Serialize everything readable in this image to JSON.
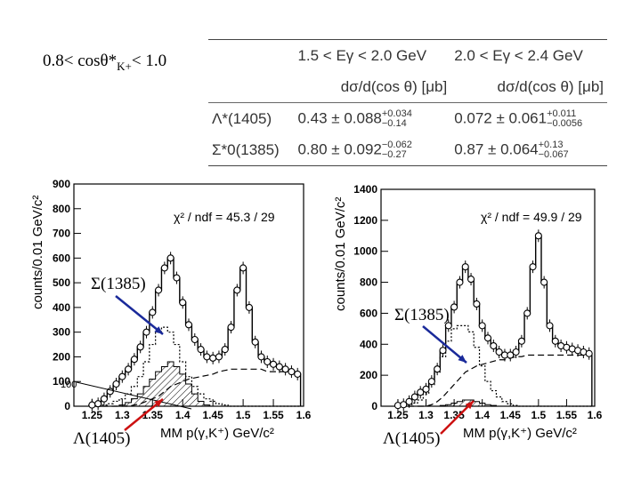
{
  "header": {
    "range_label": "0.8< cosθ*",
    "range_sub": "K+",
    "range_tail": "< 1.0"
  },
  "table": {
    "col1": "1.5 < Eγ < 2.0 GeV",
    "col2": "2.0 < Eγ < 2.4 GeV",
    "unit1": "dσ/d(cos θ) [μb]",
    "unit2": "dσ/d(cos θ) [μb]",
    "rows": [
      {
        "name": "Λ*(1405)",
        "v1": "0.43 ± 0.088",
        "e1_up": "+0.034",
        "e1_dn": "−0.14",
        "v2": "0.072 ± 0.061",
        "e2_up": "+0.011",
        "e2_dn": "−0.0056"
      },
      {
        "name": "Σ*0(1385)",
        "v1": "0.80 ± 0.092",
        "e1_up": "−0.062",
        "e1_dn": "−0.27",
        "v2": "0.87 ± 0.064",
        "e2_up": "+0.13",
        "e2_dn": "−0.067"
      }
    ]
  },
  "left": {
    "ylabel": "counts/0.01 GeV/c²",
    "chi2": "χ² / ndf = 45.3 / 29",
    "ann_sigma": "Σ(1385)",
    "ann_lambda": "Λ(1405)",
    "xlabel": "MM p(γ,K⁺)  GeV/c²",
    "extra_tick": "100"
  },
  "right": {
    "ylabel": "counts/0.01 GeV/c²",
    "chi2": "χ² / ndf = 49.9 / 29",
    "ann_sigma": "Σ(1385)",
    "ann_lambda": "Λ(1405)",
    "xlabel": "MM p(γ,K⁺)  GeV/c²"
  },
  "colors": {
    "arrow": "#1a2a9a",
    "arrow_red": "#cc1111"
  },
  "chart_data": [
    {
      "type": "line",
      "title": "",
      "xlabel": "MM p(γ,K+) GeV/c²",
      "ylabel": "counts/0.01 GeV/c²",
      "xlim": [
        1.22,
        1.6
      ],
      "ylim": [
        0,
        900
      ],
      "xticks": [
        1.25,
        1.3,
        1.35,
        1.4,
        1.45,
        1.5,
        1.55,
        1.6
      ],
      "yticks": [
        0,
        100,
        200,
        300,
        400,
        500,
        600,
        700,
        800,
        900
      ],
      "x": [
        1.25,
        1.26,
        1.27,
        1.28,
        1.29,
        1.3,
        1.31,
        1.32,
        1.33,
        1.34,
        1.35,
        1.36,
        1.37,
        1.38,
        1.39,
        1.4,
        1.41,
        1.42,
        1.43,
        1.44,
        1.45,
        1.46,
        1.47,
        1.48,
        1.49,
        1.5,
        1.51,
        1.52,
        1.53,
        1.54,
        1.55,
        1.56,
        1.57,
        1.58,
        1.59
      ],
      "series": [
        {
          "name": "data",
          "values": [
            5,
            10,
            30,
            60,
            90,
            120,
            150,
            190,
            240,
            300,
            380,
            470,
            560,
            600,
            520,
            420,
            330,
            270,
            230,
            200,
            195,
            200,
            230,
            320,
            470,
            560,
            400,
            260,
            200,
            180,
            170,
            160,
            150,
            140,
            130
          ]
        },
        {
          "name": "Sigma1385 (dotted)",
          "values": [
            0,
            0,
            5,
            10,
            20,
            30,
            50,
            80,
            120,
            180,
            250,
            300,
            320,
            300,
            250,
            180,
            120,
            80,
            50,
            30,
            20,
            10,
            5,
            0,
            0,
            0,
            0,
            0,
            0,
            0,
            0,
            0,
            0,
            0,
            0
          ]
        },
        {
          "name": "Lambda1405 (hatched)",
          "values": [
            0,
            0,
            0,
            0,
            0,
            5,
            15,
            30,
            50,
            80,
            110,
            140,
            160,
            180,
            160,
            130,
            90,
            50,
            20,
            5,
            0,
            0,
            0,
            0,
            0,
            0,
            0,
            0,
            0,
            0,
            0,
            0,
            0,
            0,
            0
          ]
        },
        {
          "name": "background (dashed)",
          "values": [
            0,
            0,
            0,
            0,
            0,
            0,
            0,
            5,
            10,
            20,
            30,
            40,
            60,
            80,
            90,
            100,
            110,
            115,
            120,
            125,
            130,
            140,
            145,
            150,
            150,
            150,
            150,
            150,
            150,
            140,
            140,
            140,
            140,
            140,
            140
          ]
        }
      ]
    },
    {
      "type": "line",
      "title": "",
      "xlabel": "MM p(γ,K+) GeV/c²",
      "ylabel": "counts/0.01 GeV/c²",
      "xlim": [
        1.22,
        1.6
      ],
      "ylim": [
        0,
        1400
      ],
      "xticks": [
        1.25,
        1.3,
        1.35,
        1.4,
        1.45,
        1.5,
        1.55,
        1.6
      ],
      "yticks": [
        0,
        200,
        400,
        600,
        800,
        1000,
        1200,
        1400
      ],
      "x": [
        1.25,
        1.26,
        1.27,
        1.28,
        1.29,
        1.3,
        1.31,
        1.32,
        1.33,
        1.34,
        1.35,
        1.36,
        1.37,
        1.38,
        1.39,
        1.4,
        1.41,
        1.42,
        1.43,
        1.44,
        1.45,
        1.46,
        1.47,
        1.48,
        1.49,
        1.5,
        1.51,
        1.52,
        1.53,
        1.54,
        1.55,
        1.56,
        1.57,
        1.58,
        1.59
      ],
      "series": [
        {
          "name": "data",
          "values": [
            5,
            10,
            30,
            60,
            90,
            110,
            160,
            240,
            360,
            520,
            640,
            800,
            900,
            820,
            660,
            520,
            440,
            390,
            350,
            330,
            330,
            350,
            420,
            600,
            900,
            1100,
            800,
            520,
            420,
            390,
            380,
            370,
            360,
            350,
            340
          ]
        },
        {
          "name": "Sigma1385 (dotted)",
          "values": [
            0,
            0,
            10,
            20,
            40,
            80,
            140,
            220,
            320,
            420,
            500,
            520,
            520,
            480,
            380,
            260,
            160,
            100,
            60,
            30,
            15,
            5,
            0,
            0,
            0,
            0,
            0,
            0,
            0,
            0,
            0,
            0,
            0,
            0,
            0
          ]
        },
        {
          "name": "Lambda1405 (hatched)",
          "values": [
            0,
            0,
            0,
            0,
            0,
            0,
            0,
            0,
            5,
            10,
            20,
            30,
            40,
            40,
            30,
            20,
            10,
            5,
            0,
            0,
            0,
            0,
            0,
            0,
            0,
            0,
            0,
            0,
            0,
            0,
            0,
            0,
            0,
            0,
            0
          ]
        },
        {
          "name": "background (dashed)",
          "values": [
            0,
            0,
            0,
            0,
            0,
            0,
            10,
            30,
            60,
            100,
            140,
            180,
            220,
            240,
            260,
            270,
            280,
            290,
            300,
            300,
            310,
            320,
            320,
            330,
            330,
            330,
            330,
            330,
            330,
            330,
            330,
            330,
            330,
            330,
            330
          ]
        }
      ]
    }
  ]
}
